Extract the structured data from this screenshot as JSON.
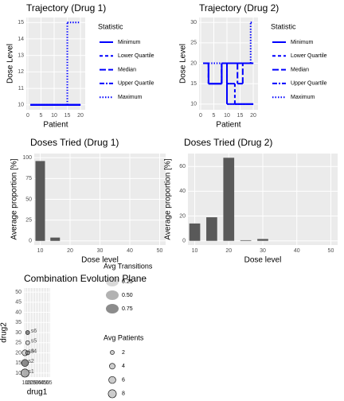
{
  "chart_data": [
    {
      "type": "line",
      "title": "Trajectory (Drug 1)",
      "x_label": "Patient",
      "y_label": "Dose Level",
      "x": [
        1,
        2,
        3,
        4,
        5,
        6,
        7,
        8,
        9,
        10,
        11,
        12,
        13,
        14,
        15,
        16,
        17,
        18,
        19,
        20
      ],
      "xlim": [
        -0.6,
        21.8
      ],
      "xticks": [
        0,
        5,
        10,
        15,
        20
      ],
      "ylim": [
        9.7,
        15.3
      ],
      "yticks": [
        10,
        11,
        12,
        13,
        14,
        15
      ],
      "step": true,
      "grid": true,
      "legend_title": "Statistic",
      "legend_position": "right",
      "series": [
        {
          "name": "Minimum",
          "color": "#0000ff",
          "linetype": "solid",
          "values": [
            10,
            10,
            10,
            10,
            10,
            10,
            10,
            10,
            10,
            10,
            10,
            10,
            10,
            10,
            10,
            10,
            10,
            10,
            10,
            10
          ]
        },
        {
          "name": "Lower Quartile",
          "color": "#0000ff",
          "linetype": "dashed",
          "values": [
            10,
            10,
            10,
            10,
            10,
            10,
            10,
            10,
            10,
            10,
            10,
            10,
            10,
            10,
            10,
            10,
            10,
            10,
            10,
            10
          ]
        },
        {
          "name": "Median",
          "color": "#0000ff",
          "linetype": "longdash",
          "values": [
            10,
            10,
            10,
            10,
            10,
            10,
            10,
            10,
            10,
            10,
            10,
            10,
            10,
            10,
            10,
            10,
            10,
            10,
            10,
            10
          ]
        },
        {
          "name": "Upper Quartile",
          "color": "#0000ff",
          "linetype": "twodash",
          "values": [
            10,
            10,
            10,
            10,
            10,
            10,
            10,
            10,
            10,
            10,
            10,
            10,
            10,
            10,
            10,
            10,
            10,
            10,
            10,
            10
          ]
        },
        {
          "name": "Maximum",
          "color": "#0000ff",
          "linetype": "dotted",
          "values": [
            10,
            10,
            10,
            10,
            10,
            10,
            10,
            10,
            10,
            10,
            10,
            10,
            10,
            10,
            15,
            15,
            15,
            15,
            15,
            15
          ]
        }
      ]
    },
    {
      "type": "line",
      "title": "Trajectory (Drug 2)",
      "x_label": "Patient",
      "y_label": "Dose Level",
      "x": [
        1,
        2,
        3,
        4,
        5,
        6,
        7,
        8,
        9,
        10,
        11,
        12,
        13,
        14,
        15,
        16,
        17,
        18,
        19,
        20
      ],
      "xlim": [
        -0.6,
        21.8
      ],
      "xticks": [
        0,
        5,
        10,
        15,
        20
      ],
      "ylim": [
        8.6,
        31.2
      ],
      "yticks": [
        10,
        15,
        20,
        25,
        30
      ],
      "step": true,
      "grid": true,
      "legend_title": "Statistic",
      "legend_position": "right",
      "series": [
        {
          "name": "Minimum",
          "color": "#0000ff",
          "linetype": "solid",
          "values": [
            20,
            20,
            15,
            15,
            15,
            15,
            15,
            20,
            20,
            10,
            10,
            10,
            10,
            10,
            10,
            10,
            10,
            10,
            10,
            10
          ]
        },
        {
          "name": "Lower Quartile",
          "color": "#0000ff",
          "linetype": "dashed",
          "values": [
            20,
            20,
            15,
            15,
            15,
            15,
            15,
            20,
            20,
            15,
            15,
            15,
            10,
            10,
            10,
            10,
            10,
            10,
            10,
            10
          ]
        },
        {
          "name": "Median",
          "color": "#0000ff",
          "linetype": "longdash",
          "values": [
            20,
            20,
            15,
            15,
            15,
            15,
            15,
            20,
            20,
            20,
            20,
            20,
            20,
            15,
            15,
            20,
            20,
            20,
            20,
            20
          ]
        },
        {
          "name": "Upper Quartile",
          "color": "#0000ff",
          "linetype": "twodash",
          "values": [
            20,
            20,
            15,
            15,
            15,
            15,
            15,
            20,
            20,
            20,
            20,
            20,
            20,
            20,
            20,
            20,
            20,
            20,
            20,
            20
          ]
        },
        {
          "name": "Maximum",
          "color": "#0000ff",
          "linetype": "dotted",
          "values": [
            20,
            20,
            20,
            20,
            20,
            20,
            20,
            20,
            20,
            20,
            20,
            20,
            20,
            20,
            20,
            20,
            20,
            20,
            30,
            30
          ]
        }
      ]
    },
    {
      "type": "bar",
      "title": "Doses Tried (Drug 1)",
      "x_label": "Dose level",
      "y_label": "Average proportion [%]",
      "x": [
        10,
        15
      ],
      "values": [
        96,
        4
      ],
      "color": "#595959",
      "xlim": [
        8,
        52
      ],
      "xticks": [
        10,
        20,
        30,
        40,
        50
      ],
      "ylim": [
        -5,
        105
      ],
      "yticks": [
        0,
        25,
        50,
        75,
        100
      ],
      "grid": true
    },
    {
      "type": "bar",
      "title": "Doses Tried (Drug 2)",
      "x_label": "Dose level",
      "y_label": "Average proportion [%]",
      "x": [
        10,
        15,
        20,
        25,
        30
      ],
      "values": [
        14,
        19,
        67,
        0.5,
        1.5
      ],
      "color": "#595959",
      "xlim": [
        8,
        52
      ],
      "xticks": [
        10,
        20,
        30,
        40,
        50
      ],
      "ylim": [
        -3.4,
        70.4
      ],
      "yticks": [
        0,
        20,
        40,
        60
      ],
      "grid": true
    },
    {
      "type": "scatter",
      "title": "Combination Evolution Plane",
      "x_label": "drug1",
      "y_label": "drug2",
      "x": [
        10,
        10,
        10,
        15,
        15,
        15
      ],
      "values": [
        10,
        15,
        20,
        20,
        25,
        30
      ],
      "sizes": [
        8,
        6,
        4,
        2,
        2,
        2
      ],
      "transitions": [
        0.5,
        0.75,
        0.25,
        0.5,
        0.25,
        0.75
      ],
      "labels": [
        "s1",
        "s2",
        "s3",
        "s4",
        "s5",
        "s6"
      ],
      "color": "#666666",
      "xlim": [
        8,
        57
      ],
      "xticks": [
        10,
        15,
        20,
        25,
        30,
        35,
        40,
        45,
        50,
        55
      ],
      "ylim": [
        8,
        52
      ],
      "yticks": [
        10,
        15,
        20,
        25,
        30,
        35,
        40,
        45,
        50
      ],
      "grid": true,
      "alpha_legend": {
        "title": "Avg Transitions",
        "values": [
          0.25,
          {
            "value": 0.5,
            "label": "0.50"
          },
          0.75
        ]
      },
      "size_legend": {
        "title": "Avg Patients",
        "values": [
          2,
          4,
          6,
          8
        ]
      }
    }
  ]
}
